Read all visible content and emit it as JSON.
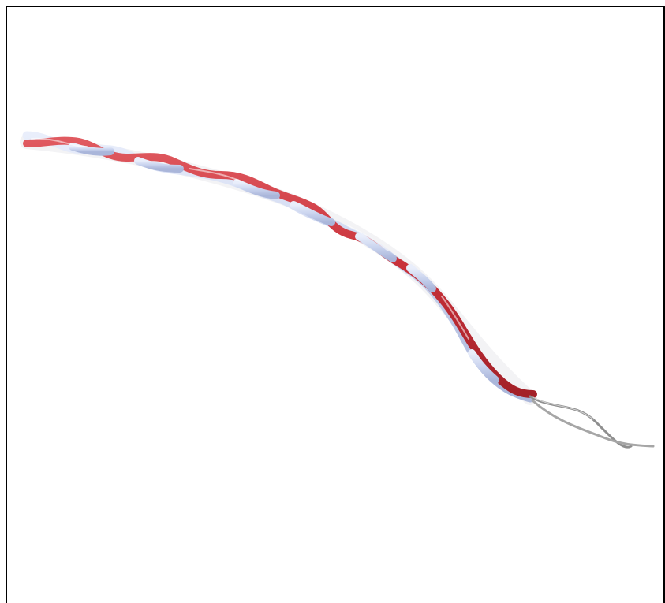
{
  "image": {
    "subject": "twisted-pair-wire",
    "background_color": "#ffffff",
    "frame_color": "#000000",
    "wire_colors": {
      "insulation_a": "#c8313a",
      "insulation_b": "#c9d3ee",
      "conductor": "#9a9a9a"
    },
    "icon": "twisted-wire-photo"
  }
}
